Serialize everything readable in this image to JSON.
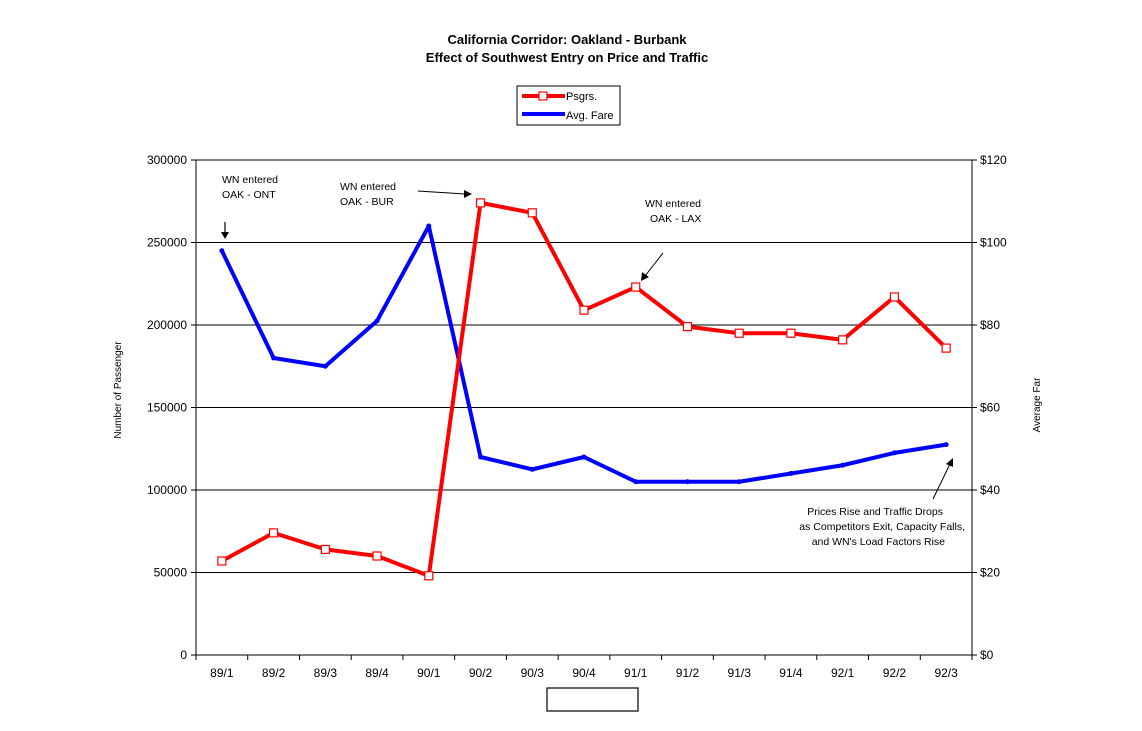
{
  "chart_data": {
    "type": "line",
    "title": "California Corridor: Oakland - Burbank",
    "subtitle": "Effect of Southwest Entry on Price and Traffic",
    "categories": [
      "89/1",
      "89/2",
      "89/3",
      "89/4",
      "90/1",
      "90/2",
      "90/3",
      "90/4",
      "91/1",
      "91/2",
      "91/3",
      "91/4",
      "92/1",
      "92/2",
      "92/3"
    ],
    "series": [
      {
        "name": "Psgrs.",
        "axis": "left",
        "color": "#ff0000",
        "marker": "hollow-square",
        "values": [
          57000,
          74000,
          64000,
          60000,
          48000,
          274000,
          268000,
          209000,
          223000,
          199000,
          195000,
          195000,
          191000,
          217000,
          186000
        ]
      },
      {
        "name": "Avg. Fare",
        "axis": "right",
        "color": "#0000ff",
        "marker": "none",
        "values": [
          98,
          72,
          70,
          81,
          104,
          48,
          45,
          48,
          42,
          42,
          42,
          44,
          46,
          49,
          51
        ]
      }
    ],
    "ylabel": "Number of Passenger",
    "y2label": "Average Far",
    "ylim": [
      0,
      300000
    ],
    "y2lim": [
      0,
      120
    ],
    "yticks": [
      "0",
      "50000",
      "100000",
      "150000",
      "200000",
      "250000",
      "300000"
    ],
    "y2ticks": [
      "$0",
      "$20",
      "$40",
      "$60",
      "$80",
      "$100",
      "$120"
    ],
    "grid": "horizontal",
    "legend_position": "top-center",
    "annotations": [
      {
        "lines": [
          "WN entered",
          "OAK - ONT"
        ]
      },
      {
        "lines": [
          "WN entered",
          "OAK - BUR"
        ]
      },
      {
        "lines": [
          "WN entered",
          "OAK - LAX"
        ]
      },
      {
        "lines": [
          "Prices Rise and Traffic Drops",
          "as Competitors Exit, Capacity Falls,",
          "and WN's Load Factors Rise"
        ]
      }
    ]
  }
}
